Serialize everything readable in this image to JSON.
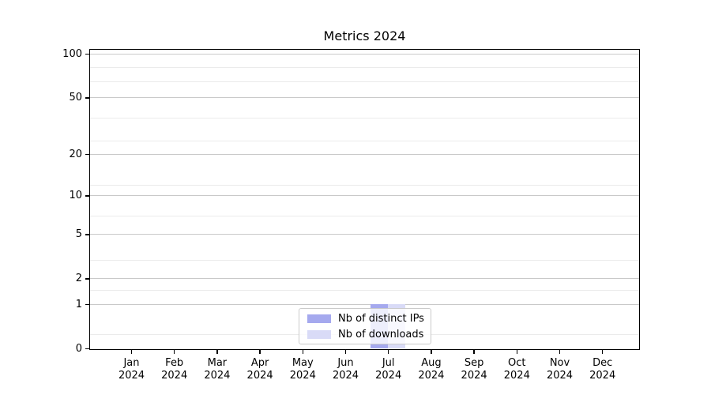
{
  "figure": {
    "background": "#ffffff",
    "spine_color": "#000000",
    "grid_major_color": "#c9c9c9",
    "grid_minor_color": "#ebebeb"
  },
  "chart_data": {
    "type": "bar",
    "title": "Metrics 2024",
    "xlabel": "",
    "ylabel": "",
    "x_tick_labels": [
      "Jan 2024",
      "Feb 2024",
      "Mar 2024",
      "Apr 2024",
      "May 2024",
      "Jun 2024",
      "Jul 2024",
      "Aug 2024",
      "Sep 2024",
      "Oct 2024",
      "Nov 2024",
      "Dec 2024"
    ],
    "series": [
      {
        "name": "Nb of distinct IPs",
        "color": "#a5a9ee",
        "values": [
          0,
          0,
          0,
          0,
          0,
          0,
          1,
          0,
          0,
          0,
          0,
          0
        ]
      },
      {
        "name": "Nb of downloads",
        "color": "#d9dbf7",
        "values": [
          0,
          0,
          0,
          0,
          0,
          0,
          1,
          0,
          0,
          0,
          0,
          0
        ]
      }
    ],
    "yscale": "log1p",
    "y_ticks": [
      0,
      1,
      2,
      5,
      10,
      20,
      50,
      100
    ],
    "ylim": [
      0,
      109
    ],
    "grid": {
      "on": true,
      "major": [
        1,
        2,
        5,
        10,
        20,
        50,
        100
      ],
      "minor": [
        0.25,
        1.5,
        3,
        7,
        12,
        25,
        36,
        65,
        81
      ]
    },
    "legend": {
      "location": "lower center inside axes",
      "entries": [
        "Nb of distinct IPs",
        "Nb of downloads"
      ]
    }
  }
}
